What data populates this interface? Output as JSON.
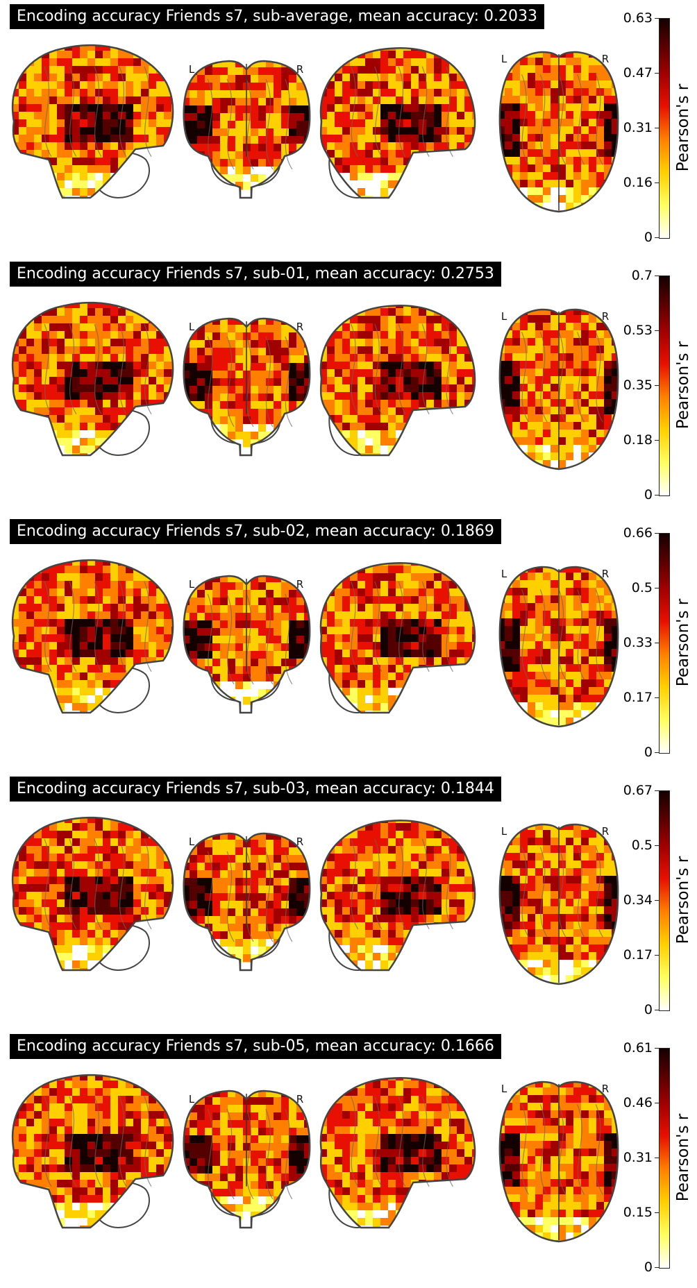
{
  "panels": [
    {
      "title": "Encoding accuracy Friends s7, sub-average, mean accuracy: 0.2033",
      "colorbar": {
        "label": "Pearson's r",
        "max": 0.63,
        "ticks": [
          "0.63",
          "0.47",
          "0.31",
          "0.16",
          "0"
        ]
      }
    },
    {
      "title": "Encoding accuracy Friends s7, sub-01, mean accuracy: 0.2753",
      "colorbar": {
        "label": "Pearson's r",
        "max": 0.7,
        "ticks": [
          "0.7",
          "0.53",
          "0.35",
          "0.18",
          "0"
        ]
      }
    },
    {
      "title": "Encoding accuracy Friends s7, sub-02, mean accuracy: 0.1869",
      "colorbar": {
        "label": "Pearson's r",
        "max": 0.66,
        "ticks": [
          "0.66",
          "0.5",
          "0.33",
          "0.17",
          "0"
        ]
      }
    },
    {
      "title": "Encoding accuracy Friends s7, sub-03, mean accuracy: 0.1844",
      "colorbar": {
        "label": "Pearson's r",
        "max": 0.67,
        "ticks": [
          "0.67",
          "0.5",
          "0.34",
          "0.17",
          "0"
        ]
      }
    },
    {
      "title": "Encoding accuracy Friends s7, sub-05, mean accuracy: 0.1666",
      "colorbar": {
        "label": "Pearson's r",
        "max": 0.61,
        "ticks": [
          "0.61",
          "0.46",
          "0.31",
          "0.15",
          "0"
        ]
      }
    }
  ],
  "hemisphere_labels": {
    "left": "L",
    "right": "R"
  },
  "colormap": {
    "name": "hot_r",
    "stops": [
      "#ffffff",
      "#ffff60",
      "#ffd000",
      "#ff8000",
      "#e81000",
      "#a00000",
      "#550000",
      "#150000"
    ]
  }
}
